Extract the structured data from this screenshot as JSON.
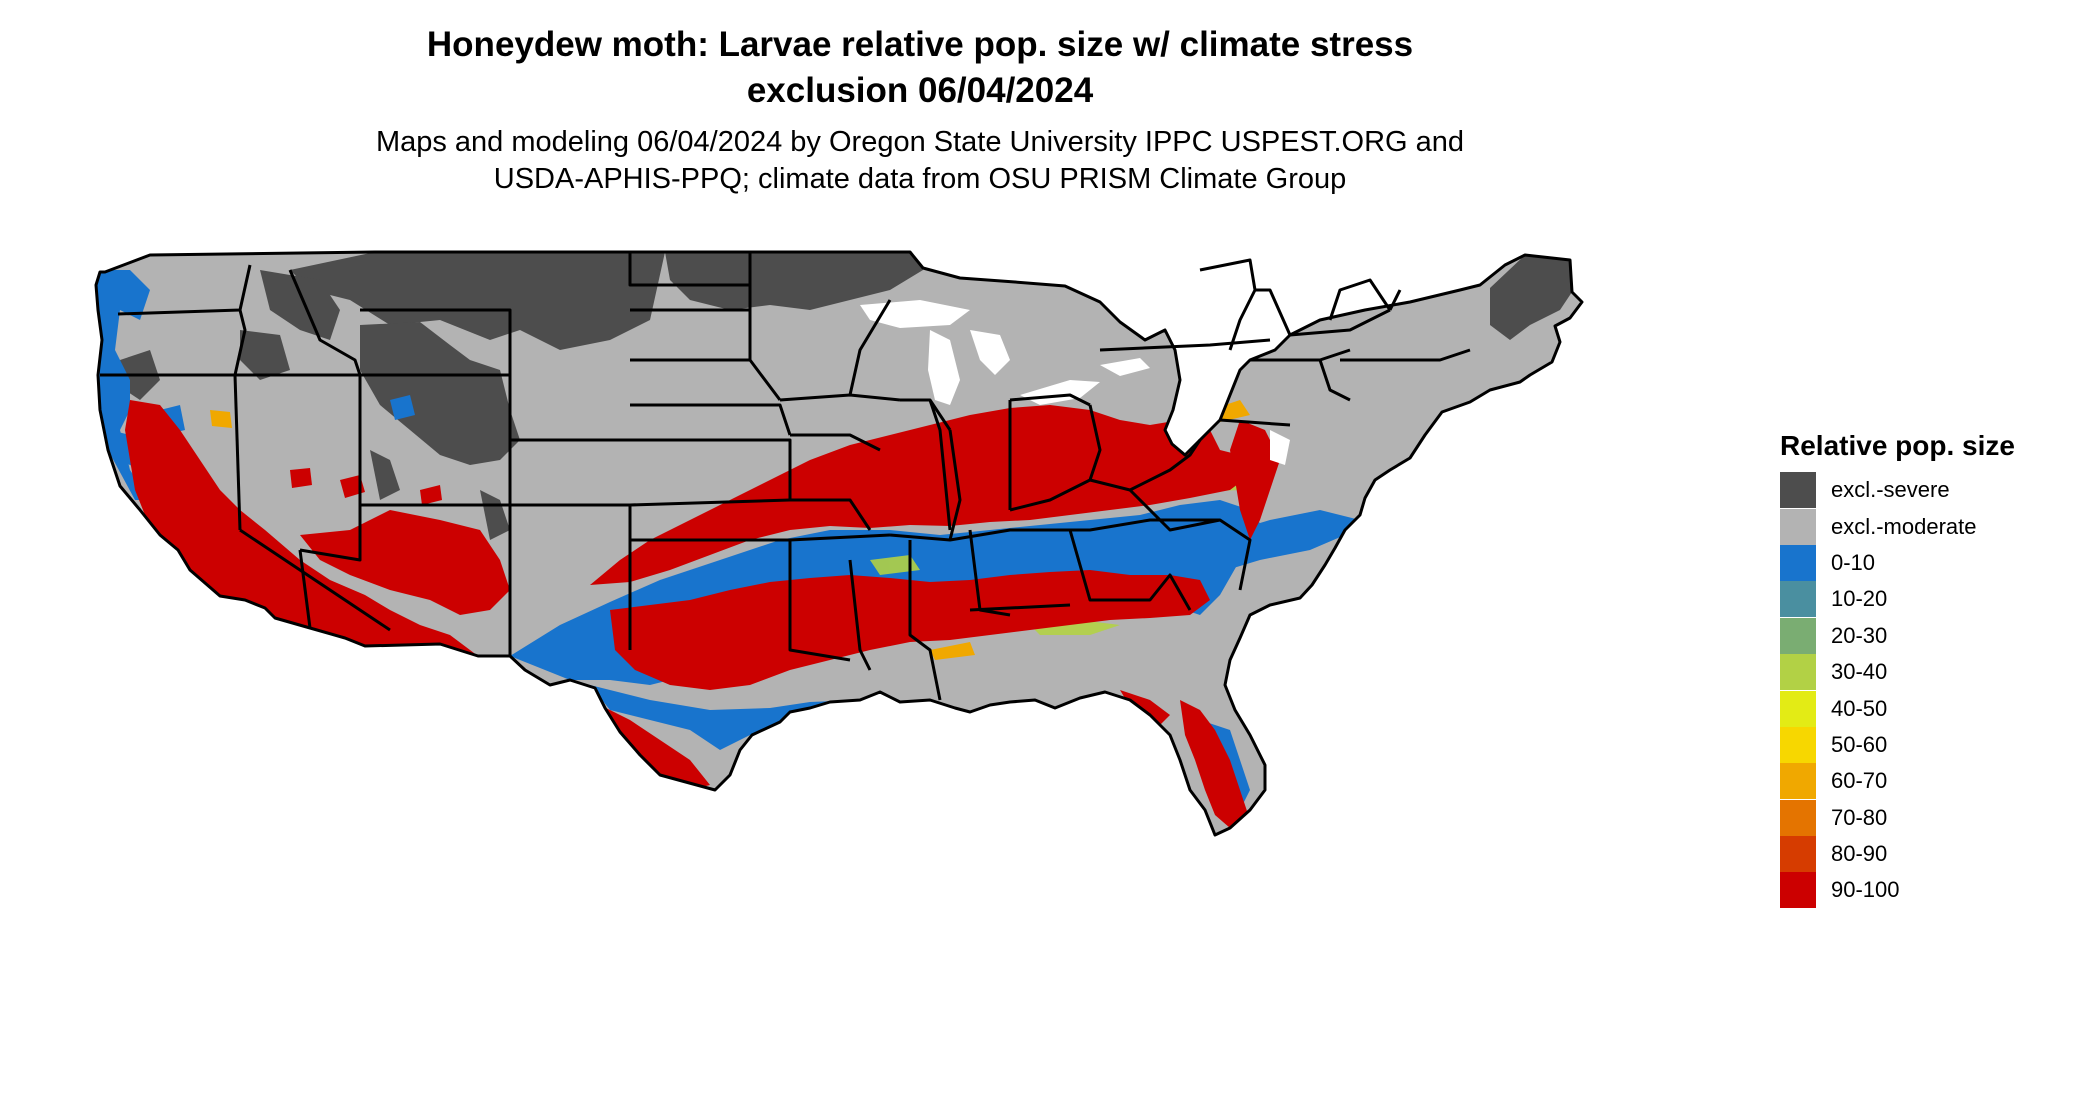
{
  "header": {
    "title_line1": "Honeydew moth: Larvae relative pop. size w/ climate stress",
    "title_line2": "exclusion 06/04/2024",
    "subtitle_line1": "Maps and modeling 06/04/2024 by Oregon State University IPPC USPEST.ORG and",
    "subtitle_line2": "USDA-APHIS-PPQ; climate data from OSU PRISM Climate Group"
  },
  "legend": {
    "title": "Relative pop. size",
    "items": [
      {
        "label": "excl.-severe",
        "color": "#4d4d4d"
      },
      {
        "label": "excl.-moderate",
        "color": "#b3b3b3"
      },
      {
        "label": "0-10",
        "color": "#1874cd"
      },
      {
        "label": "10-20",
        "color": "#4a8fa0"
      },
      {
        "label": "20-30",
        "color": "#7aad72"
      },
      {
        "label": "30-40",
        "color": "#b2d145"
      },
      {
        "label": "40-50",
        "color": "#e3eb15"
      },
      {
        "label": "50-60",
        "color": "#f7d700"
      },
      {
        "label": "60-70",
        "color": "#f0a800"
      },
      {
        "label": "70-80",
        "color": "#e47400"
      },
      {
        "label": "80-90",
        "color": "#d63c00"
      },
      {
        "label": "90-100",
        "color": "#cc0000"
      }
    ]
  }
}
